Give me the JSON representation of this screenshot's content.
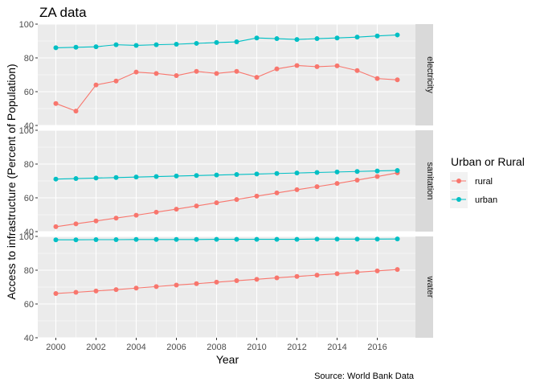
{
  "chart_data": {
    "type": "line",
    "title": "ZA data",
    "xlabel": "Year",
    "ylabel": "Access to infrastructure (Percent of Population)",
    "caption": "Source: World Bank Data",
    "x": [
      2000,
      2001,
      2002,
      2003,
      2004,
      2005,
      2006,
      2007,
      2008,
      2009,
      2010,
      2011,
      2012,
      2013,
      2014,
      2015,
      2016,
      2017
    ],
    "xlim": [
      1999.1,
      2017.9
    ],
    "x_ticks": [
      2000,
      2002,
      2004,
      2006,
      2008,
      2010,
      2012,
      2014,
      2016
    ],
    "ylim": [
      40,
      100
    ],
    "y_ticks": [
      40,
      60,
      80,
      100
    ],
    "grid": true,
    "legend": {
      "title": "Urban or Rural",
      "position": "right",
      "entries": [
        {
          "name": "rural",
          "color": "#F8766D"
        },
        {
          "name": "urban",
          "color": "#00BFC4"
        }
      ]
    },
    "facets": [
      {
        "name": "electricity",
        "series": [
          {
            "name": "rural",
            "values": [
              53,
              48.5,
              64,
              66.3,
              71.6,
              70.8,
              69.5,
              72,
              70.8,
              72,
              68.5,
              73.5,
              75.5,
              74.8,
              75.3,
              72.5,
              67.8,
              67
            ]
          },
          {
            "name": "urban",
            "values": [
              86,
              86.3,
              86.6,
              87.8,
              87.4,
              87.8,
              88.1,
              88.6,
              89.1,
              89.5,
              91.8,
              91.4,
              90.9,
              91.4,
              91.8,
              92.3,
              93,
              93.6
            ]
          }
        ]
      },
      {
        "name": "sanitation",
        "series": [
          {
            "name": "rural",
            "values": [
              42.9,
              44.6,
              46.3,
              48,
              49.7,
              51.5,
              53.3,
              55.2,
              57.1,
              59,
              61,
              62.9,
              64.8,
              66.6,
              68.5,
              70.5,
              72.6,
              74.8
            ]
          },
          {
            "name": "urban",
            "values": [
              71.1,
              71.4,
              71.7,
              72,
              72.3,
              72.6,
              72.9,
              73.2,
              73.5,
              73.8,
              74.1,
              74.4,
              74.7,
              75,
              75.3,
              75.6,
              75.9,
              76.2
            ]
          }
        ]
      },
      {
        "name": "water",
        "series": [
          {
            "name": "rural",
            "values": [
              66.2,
              66.9,
              67.7,
              68.5,
              69.4,
              70.3,
              71.2,
              72,
              72.9,
              73.8,
              74.6,
              75.5,
              76.3,
              77.1,
              77.9,
              78.8,
              79.6,
              80.4
            ]
          },
          {
            "name": "urban",
            "values": [
              98,
              98,
              98.1,
              98.1,
              98.2,
              98.2,
              98.2,
              98.2,
              98.3,
              98.3,
              98.3,
              98.3,
              98.3,
              98.4,
              98.4,
              98.4,
              98.4,
              98.5
            ]
          }
        ]
      }
    ]
  }
}
